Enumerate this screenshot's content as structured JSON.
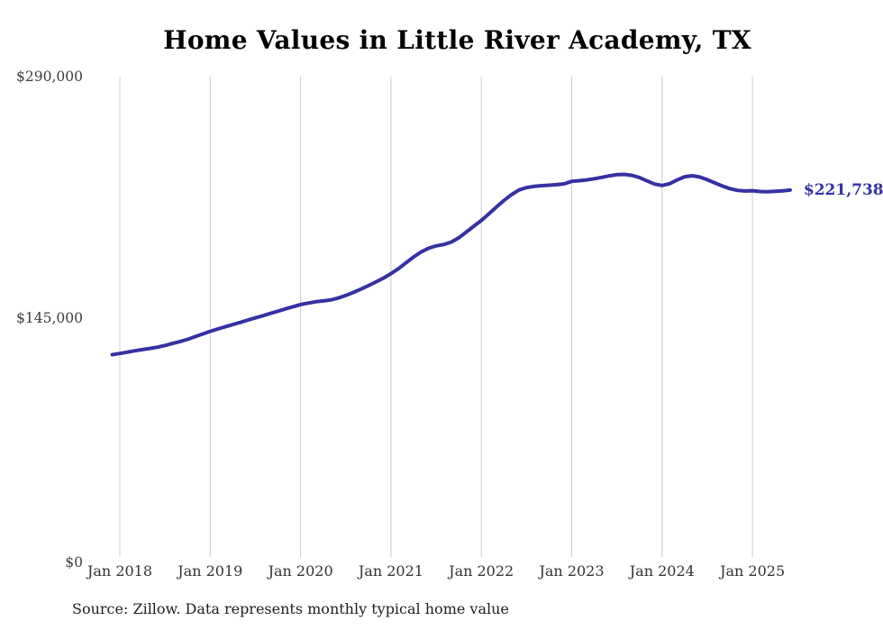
{
  "chart_data": {
    "type": "line",
    "title": "Home Values in Little River Academy, TX",
    "series_name": "Typical home value ($)",
    "frequency": "monthly",
    "x_start": "2017-12",
    "x_end": "2025-06",
    "x_tick_labels": [
      "Jan 2018",
      "Jan 2019",
      "Jan 2020",
      "Jan 2021",
      "Jan 2022",
      "Jan 2023",
      "Jan 2024",
      "Jan 2025"
    ],
    "y_ticks": [
      {
        "label": "$0",
        "value": 0
      },
      {
        "label": "$145,000",
        "value": 145000
      },
      {
        "label": "$290,000",
        "value": 290000
      }
    ],
    "ylim": [
      0,
      290000
    ],
    "grid": "vertical-only",
    "legend": "none",
    "line_color": "#3531a3",
    "grid_color": "#cccccc",
    "end_label": {
      "text": "$221,738",
      "value": 221738
    },
    "values": [
      122800,
      123500,
      124300,
      125100,
      125800,
      126500,
      127300,
      128300,
      129500,
      130700,
      132000,
      133600,
      135200,
      136800,
      138200,
      139500,
      140900,
      142200,
      143600,
      144900,
      146200,
      147600,
      148900,
      150300,
      151600,
      152900,
      153800,
      154600,
      155100,
      155700,
      156800,
      158400,
      160200,
      162200,
      164300,
      166500,
      168800,
      171500,
      174500,
      178000,
      181500,
      184500,
      186800,
      188200,
      189000,
      190500,
      193000,
      196500,
      200000,
      203500,
      207500,
      211500,
      215500,
      219000,
      221800,
      223300,
      224000,
      224400,
      224700,
      225000,
      225500,
      227000,
      227400,
      227900,
      228600,
      229400,
      230300,
      231000,
      231200,
      230600,
      229300,
      227300,
      225400,
      224500,
      225600,
      227800,
      229800,
      230400,
      229600,
      228000,
      226100,
      224200,
      222600,
      221600,
      221200,
      221400,
      220900,
      220800,
      221000,
      221300,
      221738
    ]
  },
  "footer": {
    "source_note": "Source: Zillow. Data represents monthly typical home value"
  }
}
